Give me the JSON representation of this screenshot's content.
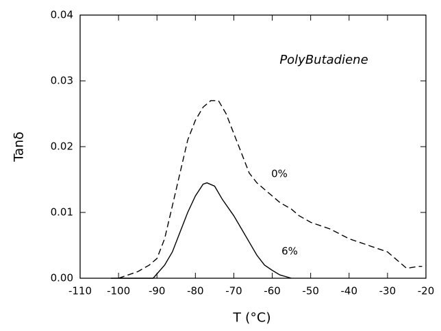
{
  "chart_data": {
    "type": "line",
    "xlabel": "T (°C)",
    "ylabel": "Tanδ",
    "annotation": "PolyButadiene",
    "xlim": [
      -110,
      -20
    ],
    "xticks": [
      -110,
      -100,
      -90,
      -80,
      -70,
      -60,
      -50,
      -40,
      -30,
      -20
    ],
    "ylim": [
      0,
      0.04
    ],
    "yticks": [
      {
        "value": 0,
        "label": "0.00"
      },
      {
        "value": 0.01,
        "label": "0.01"
      },
      {
        "value": 0.02,
        "label": "0.02"
      },
      {
        "value": 0.03,
        "label": "0.03"
      },
      {
        "value": 0.04,
        "label": "0.04"
      }
    ],
    "grid": false,
    "series": [
      {
        "name": "0%",
        "color": "#000000",
        "dash": "dashed",
        "x": [
          -100,
          -95,
          -92,
          -90,
          -88,
          -86,
          -84,
          -82,
          -80,
          -78,
          -76,
          -74,
          -72,
          -70,
          -68,
          -66,
          -64,
          -62,
          -60,
          -58,
          -55,
          -53,
          -50,
          -45,
          -40,
          -35,
          -30,
          -28,
          -25,
          -22,
          -21
        ],
        "values": [
          0,
          0.001,
          0.002,
          0.003,
          0.006,
          0.011,
          0.016,
          0.021,
          0.024,
          0.026,
          0.027,
          0.027,
          0.025,
          0.022,
          0.019,
          0.016,
          0.0145,
          0.0135,
          0.0125,
          0.0115,
          0.0105,
          0.0095,
          0.0085,
          0.0075,
          0.006,
          0.005,
          0.004,
          0.003,
          0.0015,
          0.0018,
          0.0018
        ]
      },
      {
        "name": "6%",
        "color": "#000000",
        "dash": "solid",
        "x": [
          -102,
          -91,
          -88,
          -86,
          -84,
          -82,
          -80,
          -78,
          -77,
          -75,
          -73,
          -70,
          -68,
          -66,
          -64,
          -62,
          -60,
          -58,
          -55
        ],
        "values": [
          0,
          0,
          0.002,
          0.004,
          0.007,
          0.01,
          0.0125,
          0.0143,
          0.0145,
          0.014,
          0.012,
          0.0095,
          0.0075,
          0.0055,
          0.0035,
          0.002,
          0.0012,
          0.0005,
          0
        ]
      }
    ]
  }
}
